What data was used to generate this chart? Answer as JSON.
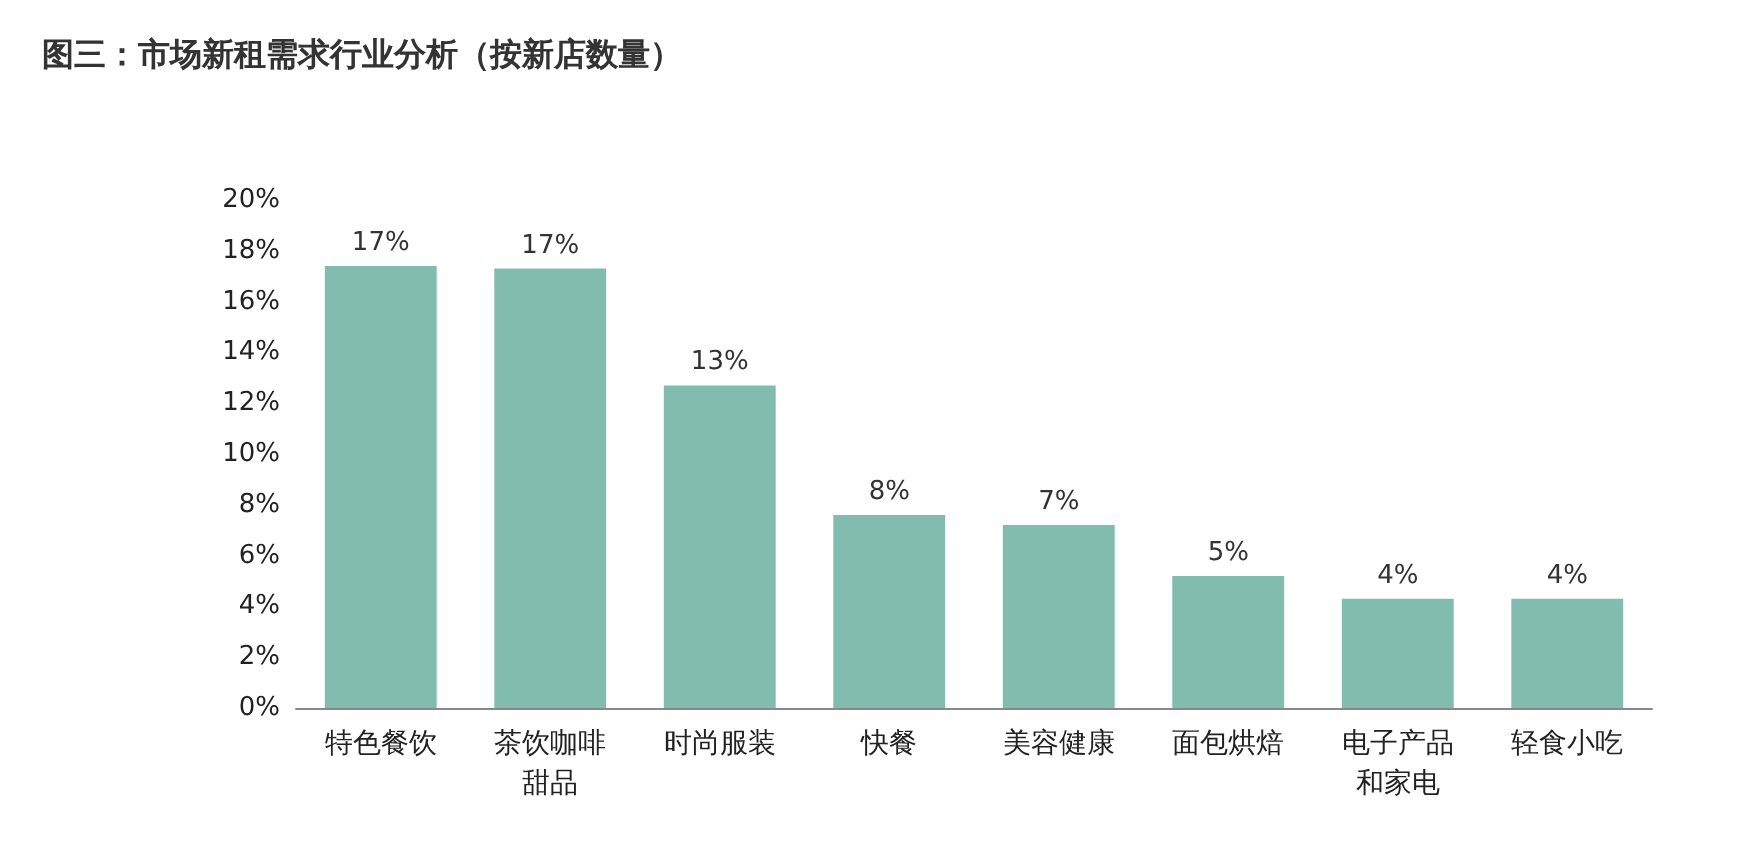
{
  "chart_data": {
    "type": "bar",
    "title": "图三：市场新租需求行业分析（按新店数量）",
    "categories": [
      "特色餐饮",
      "茶饮咖啡甜品",
      "时尚服装",
      "快餐",
      "美容健康",
      "面包烘焙",
      "电子产品和家电",
      "轻食小吃"
    ],
    "values": [
      17.4,
      17.3,
      12.7,
      7.6,
      7.2,
      5.2,
      4.3,
      4.3
    ],
    "value_labels": [
      "17%",
      "17%",
      "13%",
      "8%",
      "7%",
      "5%",
      "4%",
      "4%"
    ],
    "color": "#82bcae",
    "ylim": [
      0,
      20
    ],
    "yticks": [
      {
        "value": 0,
        "label": "0%"
      },
      {
        "value": 2,
        "label": "2%"
      },
      {
        "value": 4,
        "label": "4%"
      },
      {
        "value": 6,
        "label": "6%"
      },
      {
        "value": 8,
        "label": "8%"
      },
      {
        "value": 10,
        "label": "10%"
      },
      {
        "value": 12,
        "label": "12%"
      },
      {
        "value": 14,
        "label": "14%"
      },
      {
        "value": 16,
        "label": "16%"
      },
      {
        "value": 18,
        "label": "18%"
      },
      {
        "value": 20,
        "label": "20%"
      }
    ],
    "grid": false
  }
}
